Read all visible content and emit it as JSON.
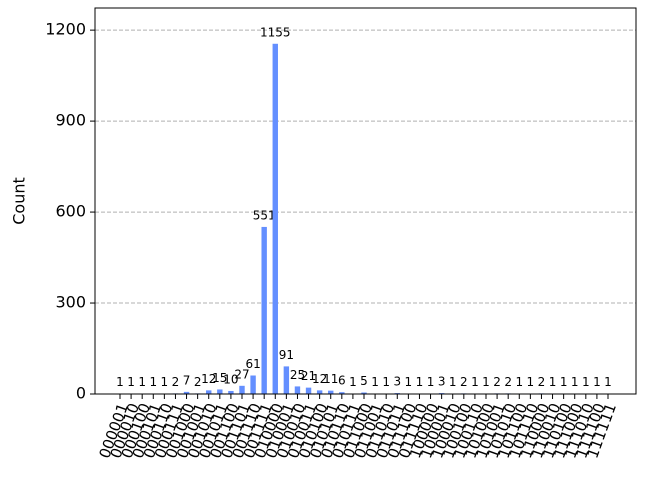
{
  "chart_data": {
    "type": "bar",
    "y_label": "Count",
    "color": "#648fff",
    "categories": [
      "000001",
      "000010",
      "000100",
      "000101",
      "000110",
      "000111",
      "001000",
      "001001",
      "001010",
      "001011",
      "001100",
      "001101",
      "001110",
      "001111",
      "010000",
      "010001",
      "010010",
      "010011",
      "010100",
      "010101",
      "010110",
      "010111",
      "011000",
      "011001",
      "011010",
      "011011",
      "011100",
      "011110",
      "100000",
      "100001",
      "100010",
      "100100",
      "100110",
      "101000",
      "101001",
      "101010",
      "101100",
      "101110",
      "110000",
      "110010",
      "110100",
      "111000",
      "111010",
      "111100",
      "111111"
    ],
    "values": [
      1,
      1,
      1,
      1,
      1,
      2,
      7,
      2,
      12,
      15,
      10,
      27,
      61,
      551,
      1155,
      91,
      25,
      21,
      12,
      11,
      6,
      1,
      5,
      1,
      1,
      3,
      1,
      1,
      1,
      3,
      1,
      2,
      1,
      1,
      2,
      2,
      1,
      1,
      2,
      1,
      1,
      1,
      1,
      1,
      1
    ],
    "ylim": [
      0,
      1273
    ],
    "yticks": [
      0,
      300,
      600,
      900,
      1200
    ],
    "grid": true
  }
}
